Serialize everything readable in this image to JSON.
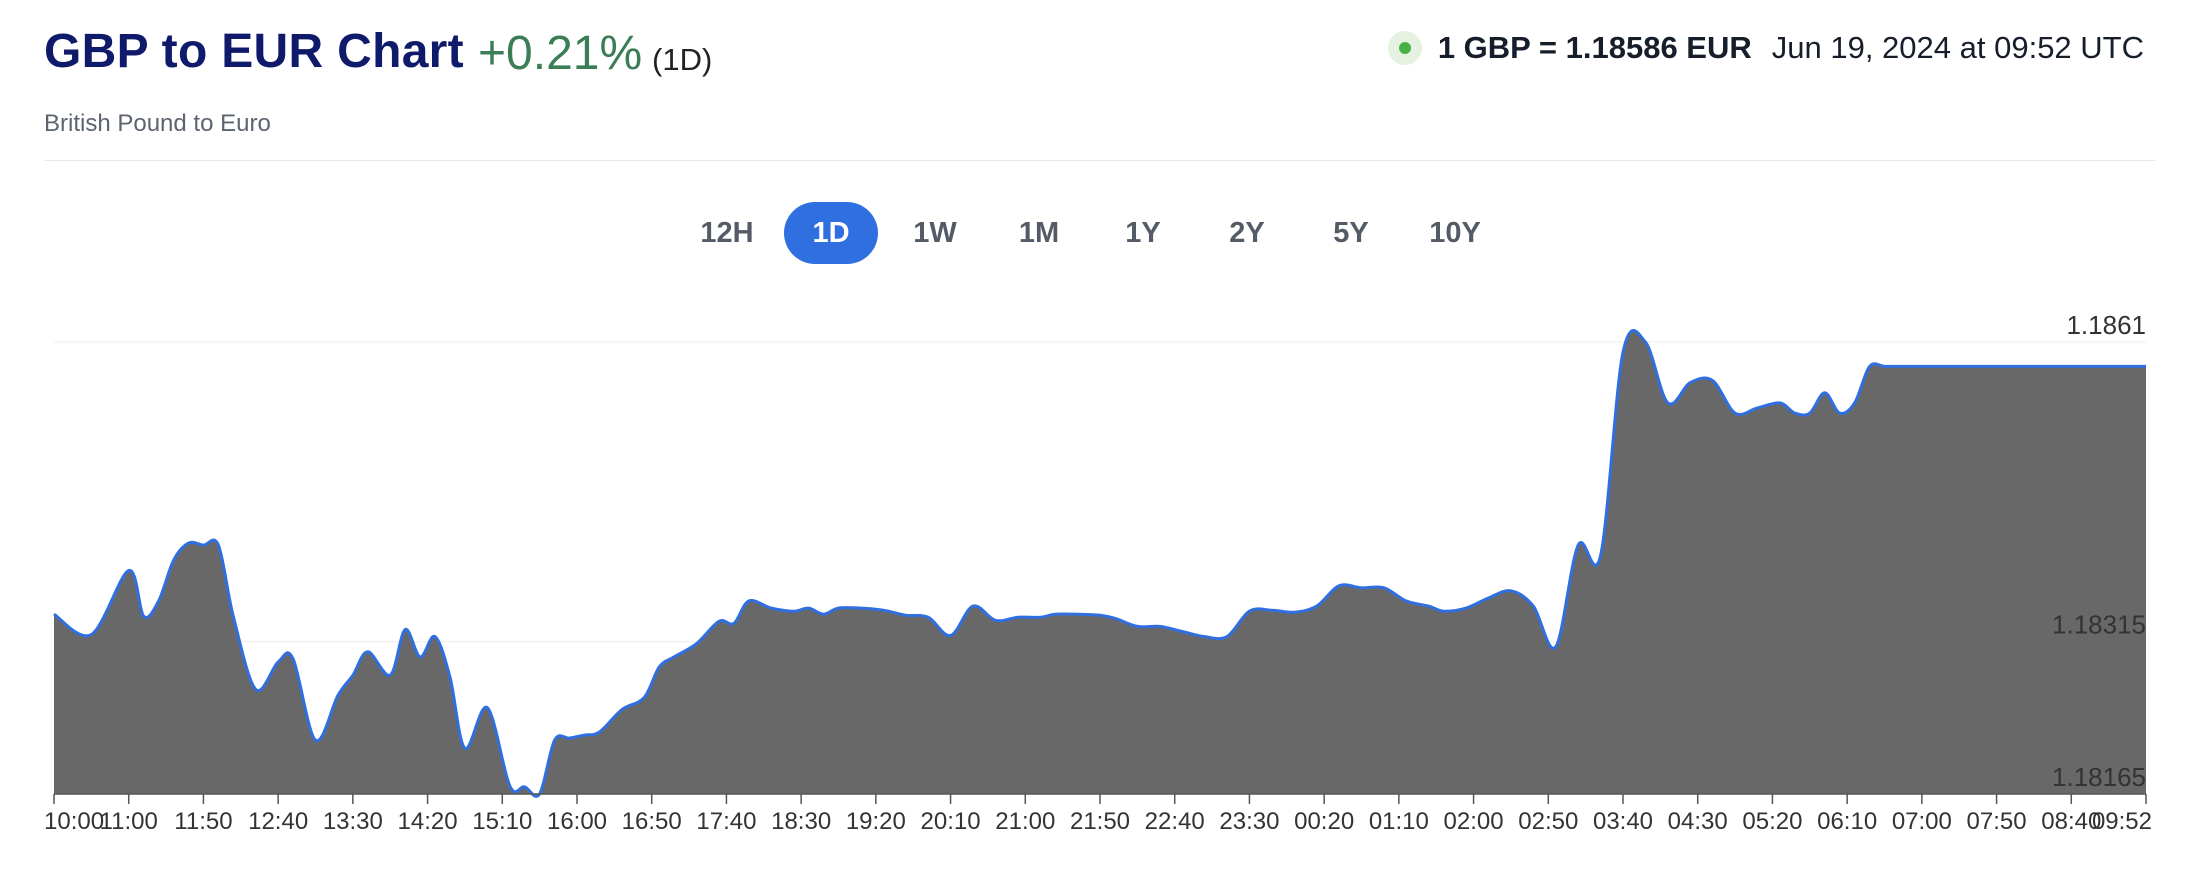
{
  "header": {
    "title": "GBP to EUR Chart",
    "change": "+0.21%",
    "period": "(1D)",
    "subtitle": "British Pound to Euro",
    "rate": "1 GBP = 1.18586 EUR",
    "timestamp": "Jun 19, 2024 at 09:52 UTC"
  },
  "tabs": [
    {
      "label": "12H",
      "active": false
    },
    {
      "label": "1D",
      "active": true
    },
    {
      "label": "1W",
      "active": false
    },
    {
      "label": "1M",
      "active": false
    },
    {
      "label": "1Y",
      "active": false
    },
    {
      "label": "2Y",
      "active": false
    },
    {
      "label": "5Y",
      "active": false
    },
    {
      "label": "10Y",
      "active": false
    }
  ],
  "colors": {
    "line": "#2f6fe0",
    "fill": "#686868",
    "accent": "#2f6fe0",
    "positive": "#3b7d57",
    "live": "#49b046"
  },
  "chart_data": {
    "type": "area",
    "title": "",
    "xlabel": "",
    "ylabel": "",
    "grid": true,
    "y_ticks": [
      1.18165,
      1.18315,
      1.1861
    ],
    "ylim": [
      1.18165,
      1.1861
    ],
    "x_ticks": [
      "10:00",
      "11:00",
      "11:50",
      "12:40",
      "13:30",
      "14:20",
      "15:10",
      "16:00",
      "16:50",
      "17:40",
      "18:30",
      "19:20",
      "20:10",
      "21:00",
      "21:50",
      "22:40",
      "23:30",
      "00:20",
      "01:10",
      "02:00",
      "02:50",
      "03:40",
      "04:30",
      "05:20",
      "06:10",
      "07:00",
      "07:50",
      "08:40",
      "09:52"
    ],
    "series": [
      {
        "x": [
          0,
          0.5,
          1,
          1.2,
          1.4,
          1.6,
          1.8,
          2.0,
          2.2,
          2.4,
          2.7,
          3.0,
          3.2,
          3.5,
          3.8,
          4.0,
          4.2,
          4.5,
          4.7,
          4.9,
          5.1,
          5.3,
          5.5,
          5.8,
          6.1,
          6.3,
          6.5,
          6.7,
          6.9,
          7.1,
          7.3,
          7.6,
          7.9,
          8.1,
          8.3,
          8.6,
          8.9,
          9.1,
          9.3,
          9.6,
          9.9,
          10.1,
          10.3,
          10.5,
          10.8,
          11.1,
          11.4,
          11.7,
          12.0,
          12.3,
          12.6,
          12.9,
          13.2,
          13.4,
          13.7,
          14.0,
          14.2,
          14.5,
          14.8,
          15.1,
          15.4,
          15.7,
          16.0,
          16.3,
          16.6,
          16.9,
          17.2,
          17.5,
          17.8,
          18.1,
          18.4,
          18.6,
          18.9,
          19.2,
          19.5,
          19.8,
          20.1,
          20.4,
          20.7,
          21.0,
          21.3,
          21.6,
          21.9,
          22.2,
          22.5,
          22.8,
          23.1,
          23.3,
          23.5,
          23.7,
          23.9,
          24.1,
          24.3,
          24.5,
          24.7,
          24.9,
          25.1,
          25.3,
          25.5,
          25.7,
          25.9,
          26.1,
          26.3,
          26.5,
          26.7,
          26.9,
          27.1,
          27.3,
          27.5,
          27.7,
          27.9,
          28.0
        ],
        "values": [
          1.18342,
          1.18322,
          1.18385,
          1.1834,
          1.18355,
          1.18395,
          1.18412,
          1.1841,
          1.1841,
          1.1834,
          1.18268,
          1.18295,
          1.18298,
          1.18218,
          1.18262,
          1.18282,
          1.18305,
          1.18282,
          1.18327,
          1.183,
          1.1832,
          1.1828,
          1.1821,
          1.1825,
          1.18173,
          1.18172,
          1.18165,
          1.18218,
          1.1822,
          1.18223,
          1.18226,
          1.18248,
          1.1826,
          1.1829,
          1.183,
          1.18313,
          1.18335,
          1.18333,
          1.18355,
          1.18348,
          1.18345,
          1.18348,
          1.18342,
          1.18348,
          1.18348,
          1.18346,
          1.18341,
          1.18339,
          1.18321,
          1.1835,
          1.18336,
          1.18339,
          1.18339,
          1.18342,
          1.18342,
          1.18341,
          1.18338,
          1.1833,
          1.1833,
          1.18325,
          1.1832,
          1.1832,
          1.18345,
          1.18346,
          1.18344,
          1.1835,
          1.1837,
          1.18368,
          1.18368,
          1.18355,
          1.1835,
          1.18345,
          1.18348,
          1.18358,
          1.18365,
          1.1835,
          1.1831,
          1.1841,
          1.184,
          1.186,
          1.1861,
          1.1855,
          1.1857,
          1.18572,
          1.1854,
          1.18545,
          1.1855,
          1.1854,
          1.1854,
          1.1856,
          1.1854,
          1.1855,
          1.18586,
          1.18586,
          1.18586,
          1.18586,
          1.18586,
          1.18586,
          1.18586,
          1.18586,
          1.18586,
          1.18586,
          1.18586,
          1.18586,
          1.18586,
          1.18586,
          1.18586,
          1.18586,
          1.18586,
          1.18586,
          1.18586,
          1.18586
        ]
      }
    ]
  }
}
